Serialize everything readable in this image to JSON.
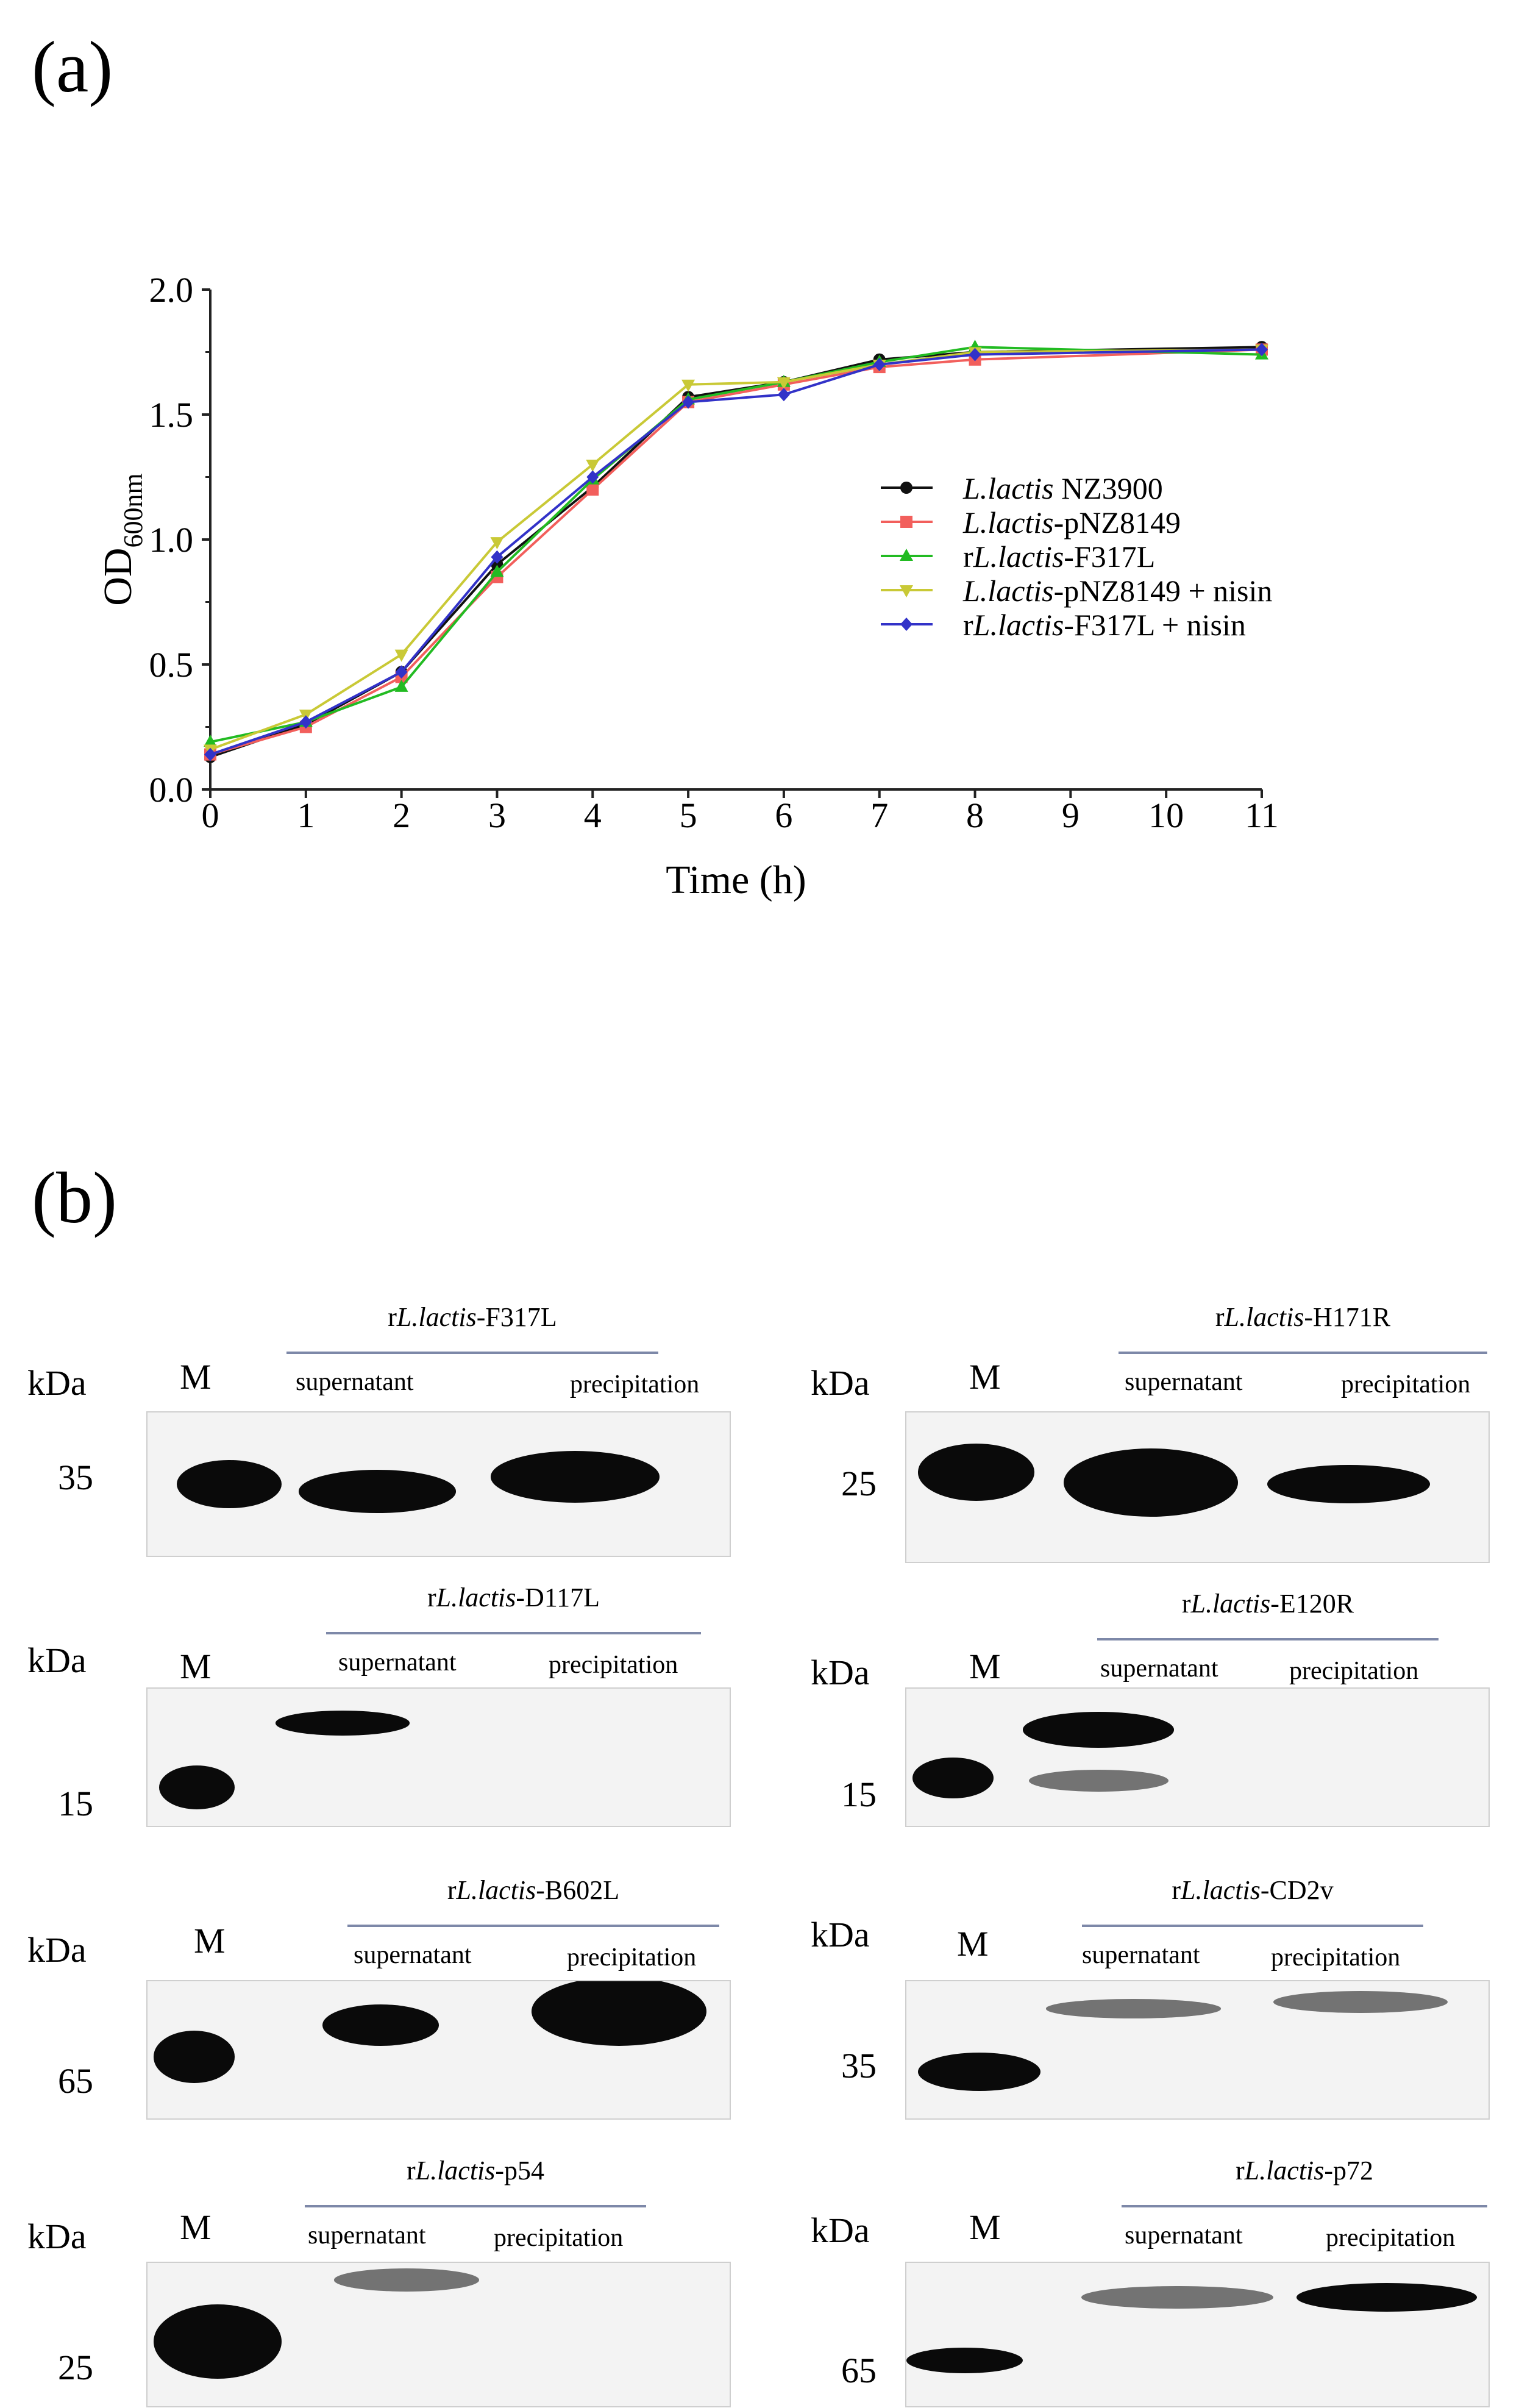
{
  "panel_a_label": "(a)",
  "panel_b_label": "(b)",
  "chart_data": {
    "type": "line",
    "xlabel": "Time (h)",
    "ylabel_main": "OD",
    "ylabel_sub": "600nm",
    "xlim": [
      0,
      11
    ],
    "ylim": [
      0,
      2.0
    ],
    "x_ticks": [
      "0",
      "1",
      "2",
      "3",
      "4",
      "5",
      "6",
      "7",
      "8",
      "9",
      "10",
      "11"
    ],
    "y_ticks": [
      "0.0",
      "0.5",
      "1.0",
      "1.5",
      "2.0"
    ],
    "legend_placement": "center-right",
    "grid": false,
    "series": [
      {
        "name_italic": "L.lactis",
        "name_rest": " NZ3900",
        "name_prefix": "",
        "color": "#111111",
        "marker": "circle",
        "x": [
          0,
          1,
          2,
          3,
          4,
          5,
          6,
          7,
          8,
          11
        ],
        "y": [
          0.13,
          0.26,
          0.47,
          0.9,
          1.21,
          1.57,
          1.63,
          1.72,
          1.75,
          1.77
        ]
      },
      {
        "name_italic": "L.lactis",
        "name_rest": "-pNZ8149",
        "name_prefix": "",
        "color": "#f25f5c",
        "marker": "square",
        "x": [
          0,
          1,
          2,
          3,
          4,
          5,
          6,
          7,
          8,
          11
        ],
        "y": [
          0.14,
          0.25,
          0.45,
          0.85,
          1.2,
          1.55,
          1.62,
          1.69,
          1.72,
          1.76
        ]
      },
      {
        "name_italic": "L.lactis",
        "name_rest": "-F317L",
        "name_prefix": "r",
        "color": "#22bb22",
        "marker": "triangle-up",
        "x": [
          0,
          1,
          2,
          3,
          4,
          5,
          6,
          7,
          8,
          11
        ],
        "y": [
          0.19,
          0.27,
          0.41,
          0.87,
          1.24,
          1.56,
          1.63,
          1.71,
          1.77,
          1.74
        ]
      },
      {
        "name_italic": "L.lactis",
        "name_rest": "-pNZ8149 + nisin",
        "name_prefix": "",
        "color": "#c9c936",
        "marker": "triangle-down",
        "x": [
          0,
          1,
          2,
          3,
          4,
          5,
          6,
          7,
          8,
          11
        ],
        "y": [
          0.16,
          0.3,
          0.54,
          0.99,
          1.3,
          1.62,
          1.63,
          1.7,
          1.75,
          1.76
        ]
      },
      {
        "name_italic": "L.lactis",
        "name_rest": "-F317L + nisin",
        "name_prefix": "r",
        "color": "#3232c8",
        "marker": "diamond",
        "x": [
          0,
          1,
          2,
          3,
          4,
          5,
          6,
          7,
          8,
          11
        ],
        "y": [
          0.14,
          0.27,
          0.47,
          0.93,
          1.25,
          1.55,
          1.58,
          1.7,
          1.74,
          1.76
        ]
      }
    ]
  },
  "blots": {
    "kda": "kDa",
    "m": "M",
    "supernatant": "supernatant",
    "precipitation": "precipitation",
    "prefix": "r",
    "species": "L.lactis",
    "items": [
      {
        "name": "-F317L",
        "marker": "35"
      },
      {
        "name": "-H171R",
        "marker": "25"
      },
      {
        "name": "-D117L",
        "marker": "15"
      },
      {
        "name": "-E120R",
        "marker": "15"
      },
      {
        "name": "-B602L",
        "marker": "65"
      },
      {
        "name": "-CD2v",
        "marker": "35"
      },
      {
        "name": "-p54",
        "marker": "25"
      },
      {
        "name": "-p72",
        "marker": "65"
      }
    ]
  }
}
